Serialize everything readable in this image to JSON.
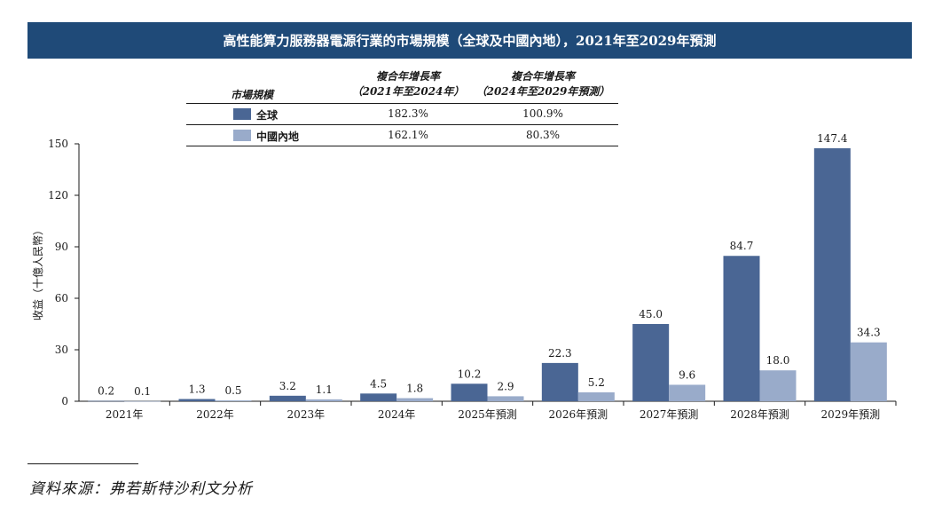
{
  "title": "高性能算力服務器電源行業的市場規模（全球及中國內地），2021年至2029年預測",
  "legend": {
    "header_label": "市場規模",
    "col1_line1": "複合年增長率",
    "col1_line2": "（2021年至2024年）",
    "col2_line1": "複合年增長率",
    "col2_line2": "（2024年至2029年預測）",
    "rows": [
      {
        "name": "全球",
        "cagr1": "182.3%",
        "cagr2": "100.9%"
      },
      {
        "name": "中國內地",
        "cagr1": "162.1%",
        "cagr2": "80.3%"
      }
    ]
  },
  "source": "資料來源：弗若斯特沙利文分析",
  "colors": {
    "global": "#4a6694",
    "china": "#99abca",
    "title_bg": "#1f4a78"
  },
  "chart_data": {
    "type": "bar",
    "categories": [
      "2021年",
      "2022年",
      "2023年",
      "2024年",
      "2025年預測",
      "2026年預測",
      "2027年預測",
      "2028年預測",
      "2029年預測"
    ],
    "series": [
      {
        "name": "全球",
        "values": [
          0.2,
          1.3,
          3.2,
          4.5,
          10.2,
          22.3,
          45.0,
          84.7,
          147.4
        ],
        "labels": [
          "0.2",
          "1.3",
          "3.2",
          "4.5",
          "10.2",
          "22.3",
          "45.0",
          "84.7",
          "147.4"
        ]
      },
      {
        "name": "中國內地",
        "values": [
          0.1,
          0.5,
          1.1,
          1.8,
          2.9,
          5.2,
          9.6,
          18.0,
          34.3
        ],
        "labels": [
          "0.1",
          "0.5",
          "1.1",
          "1.8",
          "2.9",
          "5.2",
          "9.6",
          "18.0",
          "34.3"
        ]
      }
    ],
    "ylabel": "收益（十億人民幣）",
    "ylim": [
      0,
      150
    ],
    "yticks": [
      "0",
      "30",
      "60",
      "90",
      "120",
      "150"
    ],
    "grid": false
  }
}
